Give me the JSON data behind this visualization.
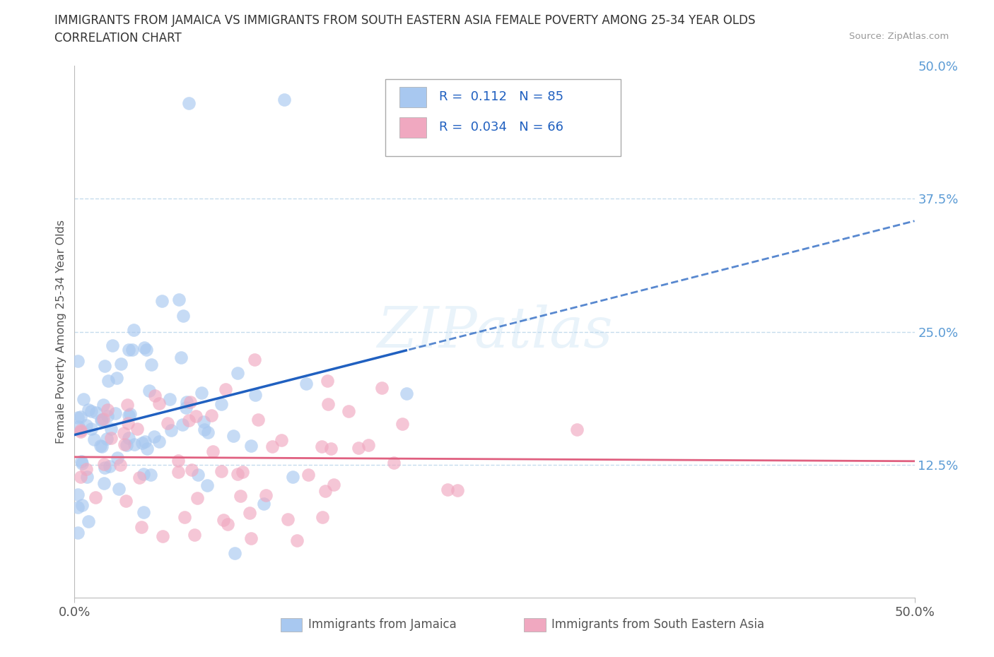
{
  "title_line1": "IMMIGRANTS FROM JAMAICA VS IMMIGRANTS FROM SOUTH EASTERN ASIA FEMALE POVERTY AMONG 25-34 YEAR OLDS",
  "title_line2": "CORRELATION CHART",
  "source_text": "Source: ZipAtlas.com",
  "ylabel": "Female Poverty Among 25-34 Year Olds",
  "xlim": [
    0.0,
    0.5
  ],
  "ylim": [
    0.0,
    0.5
  ],
  "ytick_pos": [
    0.125,
    0.25,
    0.375,
    0.5
  ],
  "ytick_labels": [
    "12.5%",
    "25.0%",
    "37.5%",
    "50.0%"
  ],
  "xtick_pos": [
    0.0,
    0.5
  ],
  "xtick_labels": [
    "0.0%",
    "50.0%"
  ],
  "color_jamaica": "#a8c8f0",
  "color_sea": "#f0a8c0",
  "color_jamaica_line": "#2060c0",
  "color_sea_line": "#e06080",
  "background_color": "#ffffff",
  "grid_color": "#c0d8ec",
  "tick_color": "#5b9bd5",
  "watermark": "ZIPatlas",
  "legend_text_color": "#2060c0",
  "legend_r1_val": "0.112",
  "legend_n1_val": "85",
  "legend_r2_val": "0.034",
  "legend_n2_val": "66",
  "jamaica_seed": 42,
  "sea_seed": 77
}
